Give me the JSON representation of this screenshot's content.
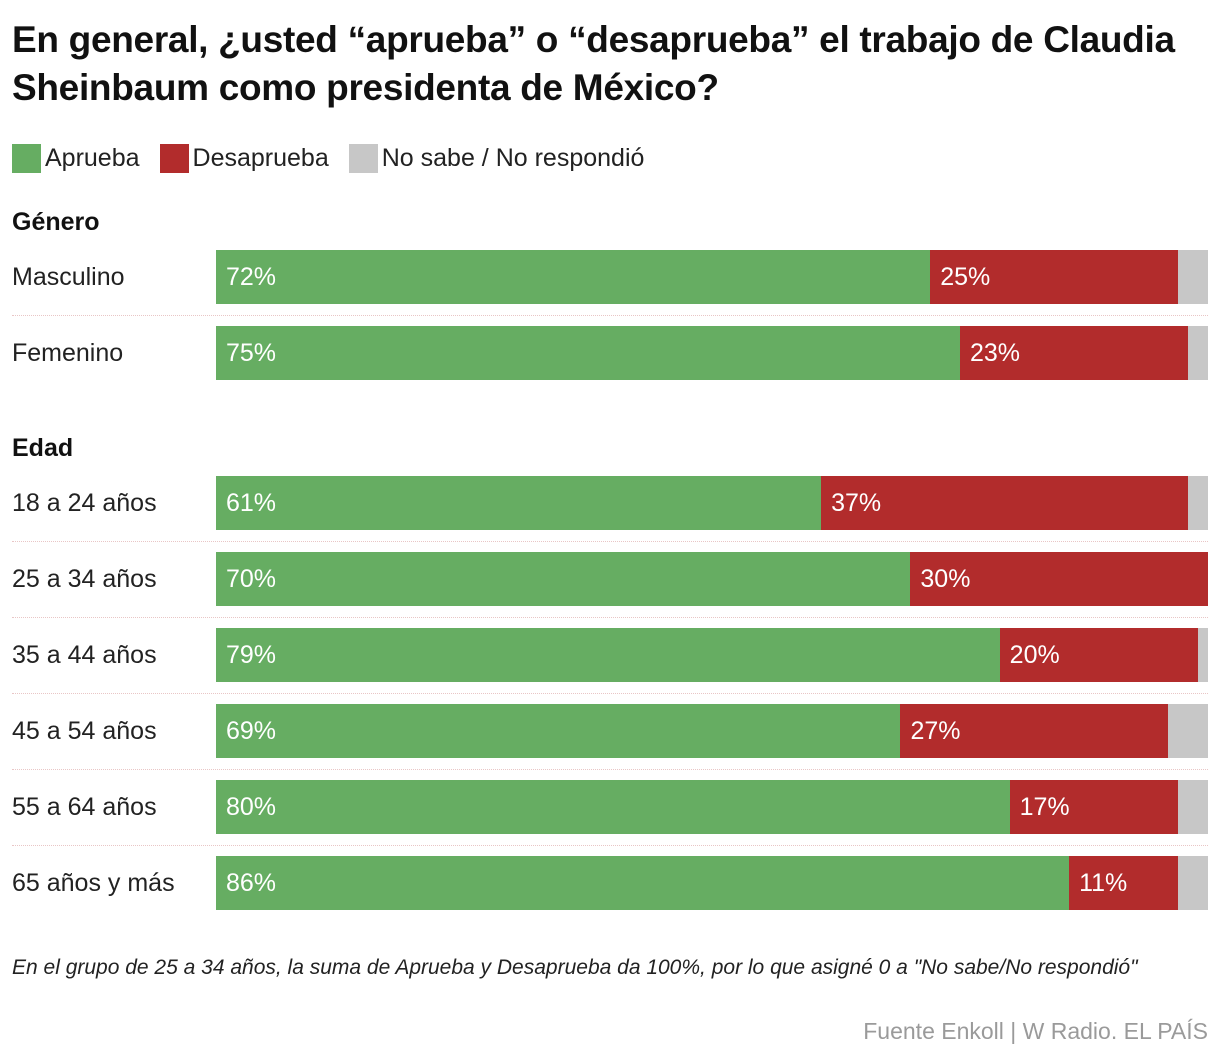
{
  "chart_data": {
    "type": "bar",
    "orientation": "horizontal",
    "stacked": true,
    "title": "En general, ¿usted “aprueba” o “desaprueba” el trabajo de Claudia Sheinbaum como presidenta de México?",
    "xlim": [
      0,
      100
    ],
    "colors": {
      "aprueba": "#66ad62",
      "desaprueba": "#b22c2c",
      "nosabe": "#c7c7c7"
    },
    "legend": [
      {
        "key": "aprueba",
        "label": "Aprueba"
      },
      {
        "key": "desaprueba",
        "label": "Desaprueba"
      },
      {
        "key": "nosabe",
        "label": "No sabe / No respondió"
      }
    ],
    "groups": [
      {
        "title": "Género",
        "rows": [
          {
            "label": "Masculino",
            "aprueba": 72,
            "desaprueba": 25,
            "nosabe": 3
          },
          {
            "label": "Femenino",
            "aprueba": 75,
            "desaprueba": 23,
            "nosabe": 2
          }
        ]
      },
      {
        "title": "Edad",
        "rows": [
          {
            "label": "18 a 24 años",
            "aprueba": 61,
            "desaprueba": 37,
            "nosabe": 2
          },
          {
            "label": "25 a 34 años",
            "aprueba": 70,
            "desaprueba": 30,
            "nosabe": 0
          },
          {
            "label": "35 a 44 años",
            "aprueba": 79,
            "desaprueba": 20,
            "nosabe": 1
          },
          {
            "label": "45 a 54 años",
            "aprueba": 69,
            "desaprueba": 27,
            "nosabe": 4
          },
          {
            "label": "55 a 64 años",
            "aprueba": 80,
            "desaprueba": 17,
            "nosabe": 3
          },
          {
            "label": "65 años y más",
            "aprueba": 86,
            "desaprueba": 11,
            "nosabe": 3
          }
        ]
      }
    ],
    "note": "En el grupo de 25 a 34 años, la suma de Aprueba y Desaprueba da 100%, por lo que asigné 0 a \"No sabe/No respondió\"",
    "source": "Fuente Enkoll | W Radio. EL PAÍS"
  }
}
